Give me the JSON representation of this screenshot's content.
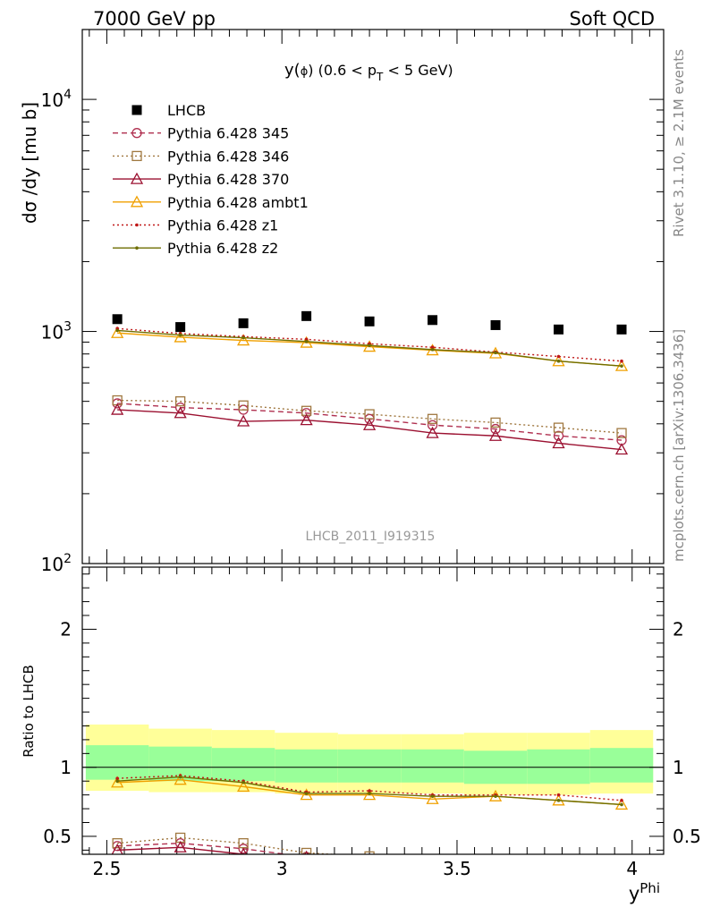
{
  "header": {
    "left": "7000 GeV pp",
    "right": "Soft QCD"
  },
  "side_labels": {
    "rivet": "Rivet 3.1.10, ≥ 2.1M events",
    "mcplots": "mcplots.cern.ch [arXiv:1306.3436]"
  },
  "watermark": "LHCB_2011_I919315",
  "colors": {
    "lhcb": "#000000",
    "p345": "#b03050",
    "p346": "#a07840",
    "p370": "#9b1030",
    "ambt1": "#f0a000",
    "z1": "#c01818",
    "z2": "#6e6e00",
    "band_inner": "#99ff99",
    "band_outer": "#ffff99"
  },
  "chart_data": [
    {
      "type": "scatter",
      "panel": "main",
      "title": "y(ϕ) (0.6 < p_T < 5 GeV)",
      "title_parts": {
        "a": "y(",
        "phi": "ϕ",
        "b": ") (0.6 < p",
        "sub": "T",
        "c": " < 5 GeV)"
      },
      "ylabel": "dσ /dy [mu b]",
      "y_scale": "log",
      "ylim": [
        100,
        20000
      ],
      "xlim": [
        2.43,
        4.09
      ],
      "y_ticks": [
        {
          "value": 100,
          "base": "10",
          "exp": "2"
        },
        {
          "value": 1000,
          "base": "10",
          "exp": "3"
        },
        {
          "value": 10000,
          "base": "10",
          "exp": "4"
        }
      ],
      "legend_position": "top-left",
      "x": [
        2.53,
        2.71,
        2.89,
        3.07,
        3.25,
        3.43,
        3.61,
        3.79,
        3.97
      ],
      "series": [
        {
          "key": "lhcb",
          "name": "LHCB",
          "marker": "square-filled",
          "line": "none",
          "values": [
            1130,
            1045,
            1085,
            1165,
            1105,
            1120,
            1065,
            1020,
            1020
          ]
        },
        {
          "key": "p345",
          "name": "Pythia 6.428 345",
          "marker": "circle-open",
          "line": "dashed",
          "values": [
            490,
            470,
            460,
            445,
            420,
            395,
            380,
            355,
            340
          ]
        },
        {
          "key": "p346",
          "name": "Pythia 6.428 346",
          "marker": "square-open",
          "line": "dotted",
          "values": [
            505,
            500,
            480,
            455,
            440,
            420,
            405,
            385,
            365
          ]
        },
        {
          "key": "p370",
          "name": "Pythia 6.428 370",
          "marker": "triangle-open",
          "line": "solid",
          "values": [
            460,
            445,
            410,
            415,
            395,
            365,
            355,
            330,
            310
          ]
        },
        {
          "key": "ambt1",
          "name": "Pythia 6.428 ambt1",
          "marker": "triangle-open",
          "line": "solid",
          "values": [
            985,
            945,
            915,
            895,
            860,
            830,
            805,
            745,
            710
          ]
        },
        {
          "key": "z1",
          "name": "Pythia 6.428 z1",
          "marker": "dot",
          "line": "dotted",
          "values": [
            1030,
            980,
            950,
            925,
            885,
            855,
            815,
            780,
            745
          ]
        },
        {
          "key": "z2",
          "name": "Pythia 6.428 z2",
          "marker": "dot",
          "line": "solid",
          "values": [
            1010,
            965,
            940,
            905,
            870,
            835,
            810,
            745,
            710
          ]
        }
      ]
    },
    {
      "type": "line",
      "panel": "ratio",
      "ylabel": "Ratio to LHCB",
      "xlabel": "y^Phi",
      "xlabel_parts": {
        "base": "y",
        "sup": "Phi"
      },
      "ylim": [
        0.37,
        2.45
      ],
      "xlim": [
        2.43,
        4.09
      ],
      "x_ticks": [
        {
          "value": 2.5,
          "label": "2.5"
        },
        {
          "value": 3,
          "label": "3"
        },
        {
          "value": 3.5,
          "label": "3.5"
        },
        {
          "value": 4,
          "label": "4"
        }
      ],
      "y_ticks": [
        {
          "value": 0.5,
          "label": "0.5"
        },
        {
          "value": 1,
          "label": "1"
        },
        {
          "value": 2,
          "label": "2"
        }
      ],
      "reference_line": 1,
      "bands": {
        "x_edges": [
          2.44,
          2.62,
          2.8,
          2.98,
          3.16,
          3.34,
          3.52,
          3.7,
          3.88,
          4.06
        ],
        "inner_lo": [
          0.91,
          0.9,
          0.9,
          0.89,
          0.89,
          0.89,
          0.88,
          0.88,
          0.89
        ],
        "inner_hi": [
          1.16,
          1.15,
          1.14,
          1.13,
          1.13,
          1.13,
          1.12,
          1.13,
          1.14
        ],
        "outer_lo": [
          0.83,
          0.82,
          0.82,
          0.81,
          0.81,
          0.81,
          0.8,
          0.8,
          0.81
        ],
        "outer_hi": [
          1.31,
          1.28,
          1.27,
          1.25,
          1.24,
          1.24,
          1.25,
          1.25,
          1.27
        ]
      },
      "x": [
        2.53,
        2.71,
        2.89,
        3.07,
        3.25,
        3.43,
        3.61,
        3.79,
        3.97
      ],
      "series": [
        {
          "key": "p345",
          "marker": "circle-open",
          "line": "dashed",
          "values": [
            0.43,
            0.45,
            0.41,
            0.35,
            0.33,
            0.3,
            0.3,
            0.3,
            0.3
          ]
        },
        {
          "key": "p346",
          "marker": "square-open",
          "line": "dotted",
          "values": [
            0.45,
            0.49,
            0.45,
            0.38,
            0.355,
            0.33,
            0.32,
            0.31,
            0.3
          ]
        },
        {
          "key": "p370",
          "marker": "triangle-open",
          "line": "solid",
          "values": [
            0.4,
            0.42,
            0.37,
            0.35,
            0.33,
            0.31,
            0.3,
            0.3,
            0.3
          ]
        },
        {
          "key": "ambt1",
          "marker": "triangle-open",
          "line": "solid",
          "values": [
            0.89,
            0.91,
            0.86,
            0.8,
            0.8,
            0.77,
            0.79,
            0.76,
            0.73
          ]
        },
        {
          "key": "z1",
          "marker": "dot",
          "line": "dotted",
          "values": [
            0.92,
            0.94,
            0.9,
            0.82,
            0.83,
            0.8,
            0.8,
            0.8,
            0.76
          ]
        },
        {
          "key": "z2",
          "marker": "dot",
          "line": "solid",
          "values": [
            0.9,
            0.93,
            0.89,
            0.81,
            0.81,
            0.79,
            0.79,
            0.76,
            0.73
          ]
        }
      ]
    }
  ]
}
